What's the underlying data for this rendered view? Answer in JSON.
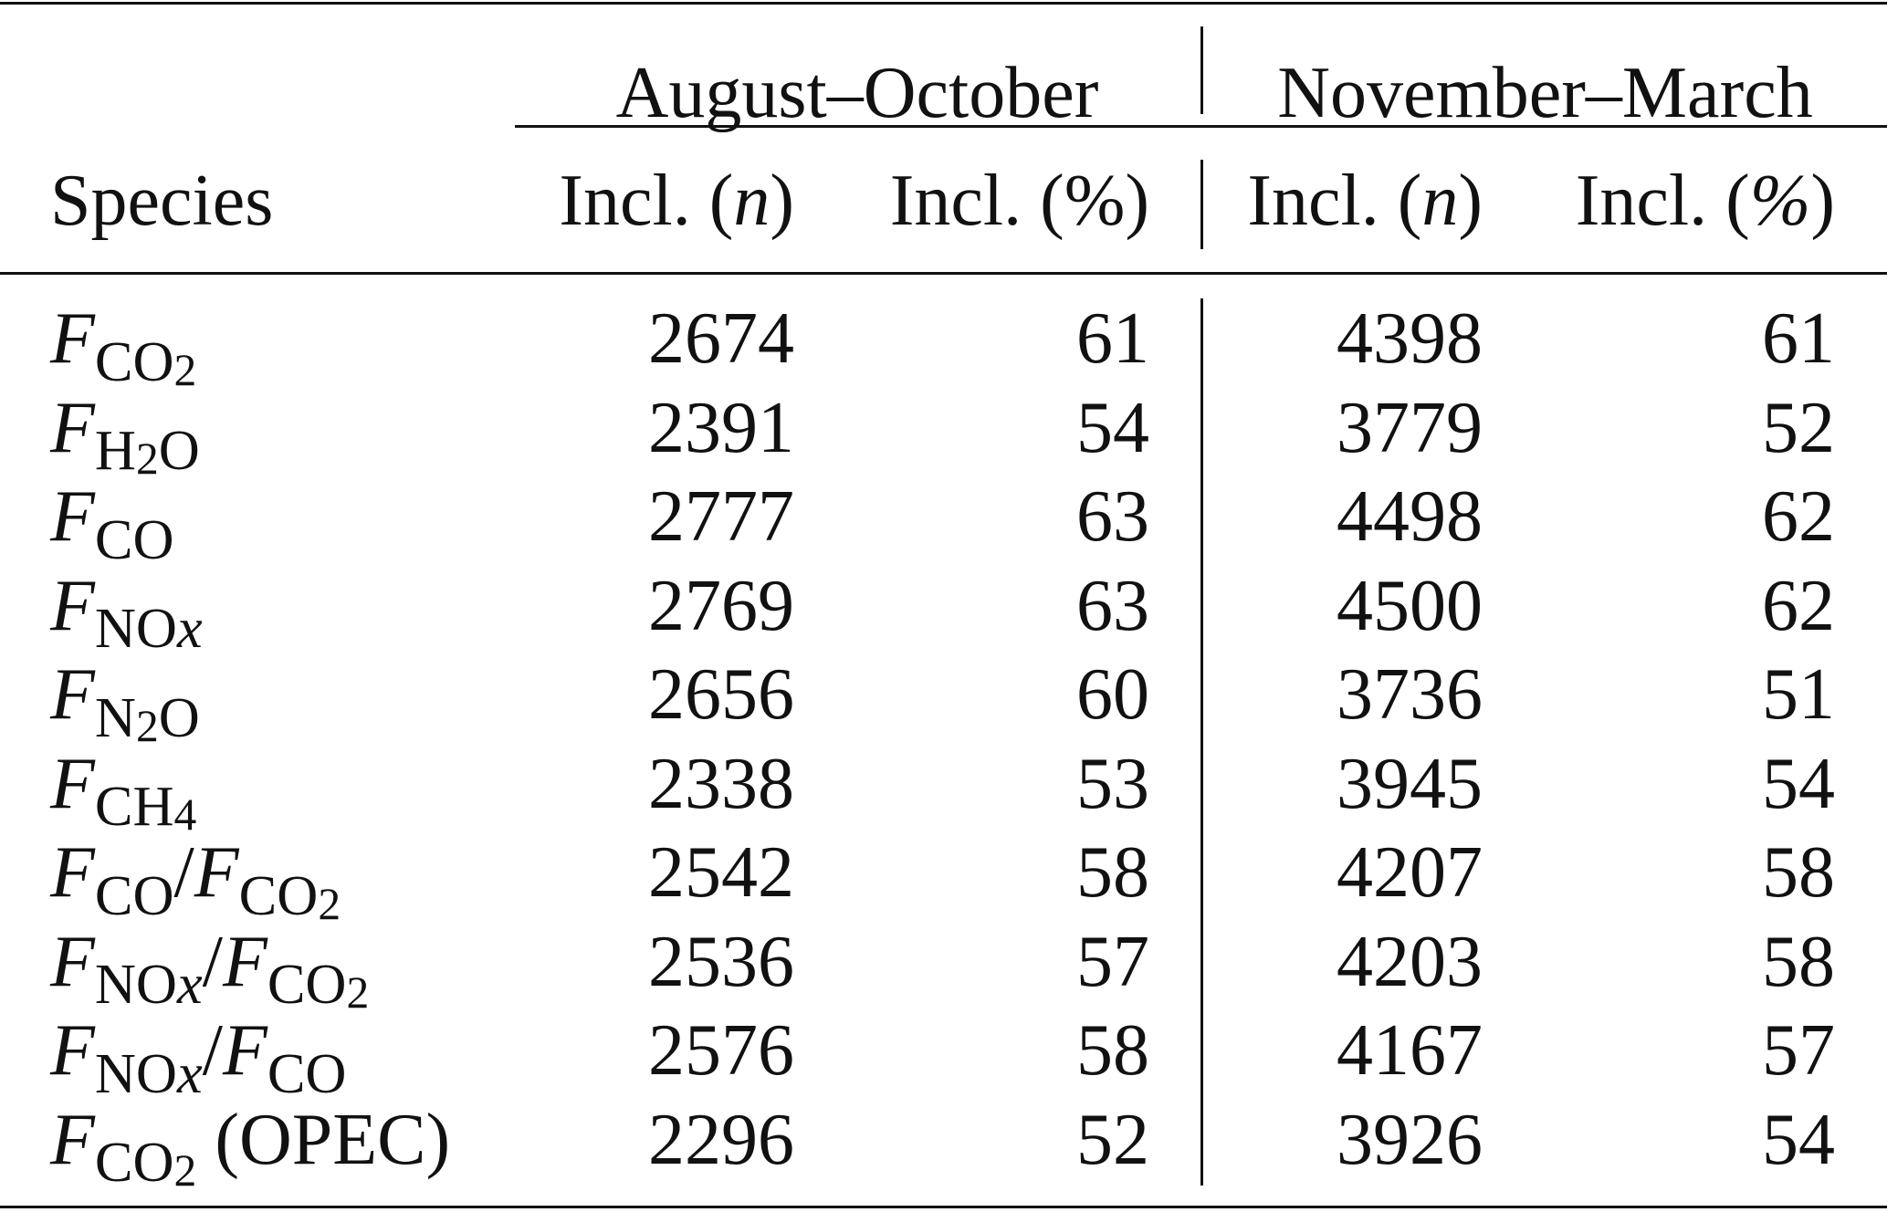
{
  "table": {
    "group_headers": [
      "August–October",
      "November–March"
    ],
    "columns": [
      "Species",
      "Incl. (",
      "n",
      ")",
      "Incl. (%)"
    ],
    "col_headers": [
      {
        "pre": "Incl. (",
        "it": "n",
        "post": ")"
      },
      {
        "pre": "Incl. (",
        "it": "%",
        "post": ")"
      },
      {
        "pre": "Incl. (",
        "it": "n",
        "post": ")"
      },
      {
        "pre": "Incl. (",
        "it": "%",
        "post": ")"
      }
    ],
    "species_header": "Species",
    "rows": [
      {
        "species": [
          {
            "t": "F",
            "k": "it"
          },
          {
            "t": "CO",
            "k": "sub"
          },
          {
            "t": "2",
            "k": "sub2"
          }
        ],
        "values": [
          "2674",
          "61",
          "4398",
          "61"
        ]
      },
      {
        "species": [
          {
            "t": "F",
            "k": "it"
          },
          {
            "t": "H",
            "k": "sub"
          },
          {
            "t": "2",
            "k": "sub2"
          },
          {
            "t": "O",
            "k": "sub"
          }
        ],
        "values": [
          "2391",
          "54",
          "3779",
          "52"
        ]
      },
      {
        "species": [
          {
            "t": "F",
            "k": "it"
          },
          {
            "t": "CO",
            "k": "sub"
          }
        ],
        "values": [
          "2777",
          "63",
          "4498",
          "62"
        ]
      },
      {
        "species": [
          {
            "t": "F",
            "k": "it"
          },
          {
            "t": "NO",
            "k": "sub"
          },
          {
            "t": "x",
            "k": "subit"
          }
        ],
        "values": [
          "2769",
          "63",
          "4500",
          "62"
        ]
      },
      {
        "species": [
          {
            "t": "F",
            "k": "it"
          },
          {
            "t": "N",
            "k": "sub"
          },
          {
            "t": "2",
            "k": "sub2"
          },
          {
            "t": "O",
            "k": "sub"
          }
        ],
        "values": [
          "2656",
          "60",
          "3736",
          "51"
        ]
      },
      {
        "species": [
          {
            "t": "F",
            "k": "it"
          },
          {
            "t": "CH",
            "k": "sub"
          },
          {
            "t": "4",
            "k": "sub2"
          }
        ],
        "values": [
          "2338",
          "53",
          "3945",
          "54"
        ]
      },
      {
        "species": [
          {
            "t": "F",
            "k": "it"
          },
          {
            "t": "CO",
            "k": "sub"
          },
          {
            "t": "/",
            "k": "n"
          },
          {
            "t": "F",
            "k": "it"
          },
          {
            "t": "CO",
            "k": "sub"
          },
          {
            "t": "2",
            "k": "sub2"
          }
        ],
        "values": [
          "2542",
          "58",
          "4207",
          "58"
        ]
      },
      {
        "species": [
          {
            "t": "F",
            "k": "it"
          },
          {
            "t": "NO",
            "k": "sub"
          },
          {
            "t": "x",
            "k": "subit"
          },
          {
            "t": "/",
            "k": "n"
          },
          {
            "t": "F",
            "k": "it"
          },
          {
            "t": "CO",
            "k": "sub"
          },
          {
            "t": "2",
            "k": "sub2"
          }
        ],
        "values": [
          "2536",
          "57",
          "4203",
          "58"
        ]
      },
      {
        "species": [
          {
            "t": "F",
            "k": "it"
          },
          {
            "t": "NO",
            "k": "sub"
          },
          {
            "t": "x",
            "k": "subit"
          },
          {
            "t": "/",
            "k": "n"
          },
          {
            "t": "F",
            "k": "it"
          },
          {
            "t": "CO",
            "k": "sub"
          }
        ],
        "values": [
          "2576",
          "58",
          "4167",
          "57"
        ]
      },
      {
        "species": [
          {
            "t": "F",
            "k": "it"
          },
          {
            "t": "CO",
            "k": "sub"
          },
          {
            "t": "2",
            "k": "sub2"
          },
          {
            "t": " (OPEC)",
            "k": "n"
          }
        ],
        "values": [
          "2296",
          "52",
          "3926",
          "54"
        ]
      }
    ]
  }
}
